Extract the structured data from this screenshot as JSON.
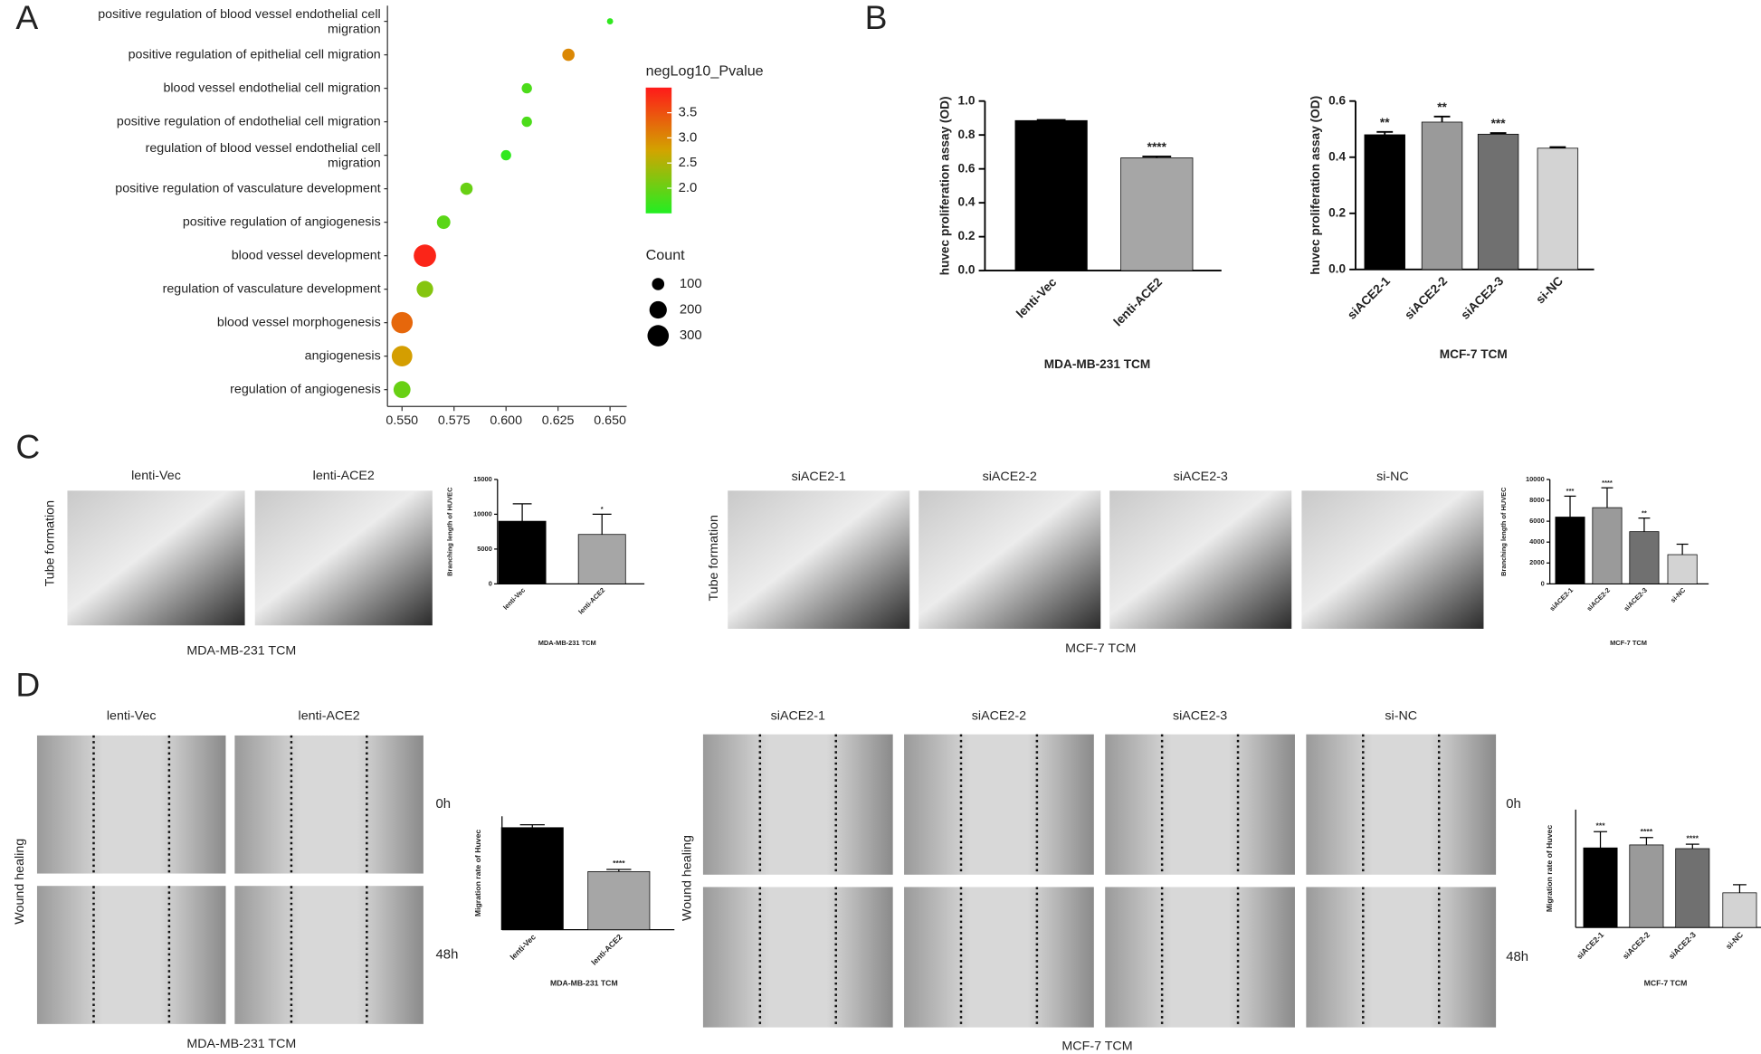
{
  "figure": {
    "panel_labels": [
      "A",
      "B",
      "C",
      "D"
    ],
    "tube_left": {
      "image_labels": [
        "lenti-Vec",
        "lenti-ACE2"
      ],
      "side_label": "Tube formation",
      "caption": "MDA-MB-231 TCM"
    },
    "tube_right": {
      "image_labels": [
        "siACE2-1",
        "siACE2-2",
        "siACE2-3",
        "si-NC"
      ],
      "side_label": "Tube formation",
      "caption": "MCF-7 TCM"
    },
    "wound_left": {
      "image_labels": [
        "lenti-Vec",
        "lenti-ACE2"
      ],
      "row_labels": [
        "0h",
        "48h"
      ],
      "side_label": "Wound healing",
      "caption": "MDA-MB-231 TCM"
    },
    "wound_right": {
      "image_labels": [
        "siACE2-1",
        "siACE2-2",
        "siACE2-3",
        "si-NC"
      ],
      "row_labels": [
        "0h",
        "48h"
      ],
      "side_label": "Wound healing",
      "caption": "MCF-7 TCM"
    }
  },
  "chart_data": [
    {
      "type": "dot",
      "categories": [
        "positive regulation of blood vessel endothelial cell migration",
        "positive regulation of epithelial cell migration",
        "blood vessel endothelial cell migration",
        "positive regulation of endothelial cell migration",
        "regulation of blood vessel endothelial cell migration",
        "positive regulation of vasculature development",
        "positive regulation of angiogenesis",
        "blood vessel development",
        "regulation of vasculature development",
        "blood vessel morphogenesis",
        "angiogenesis",
        "regulation of angiogenesis"
      ],
      "values": [
        0.65,
        0.63,
        0.61,
        0.61,
        0.6,
        0.581,
        0.57,
        0.561,
        0.561,
        0.55,
        0.55,
        0.55
      ],
      "counts": [
        25,
        100,
        70,
        70,
        70,
        100,
        120,
        330,
        180,
        300,
        280,
        190
      ],
      "pvalues": [
        1.6,
        3.0,
        1.8,
        1.8,
        1.6,
        2.0,
        1.9,
        3.9,
        2.2,
        3.3,
        2.8,
        2.0
      ],
      "xlim": [
        0.543,
        0.658
      ],
      "xticks": [
        {
          "value": 0.55,
          "label": "0.550"
        },
        0.575,
        {
          "value": 0.6,
          "label": "0.600"
        },
        0.625,
        {
          "value": 0.65,
          "label": "0.650"
        }
      ],
      "color_title": "negLog10_Pvalue",
      "colorlim": [
        1.5,
        4.0
      ],
      "colorticks": [
        {
          "value": 2,
          "label": "2.0"
        },
        2.5,
        {
          "value": 3,
          "label": "3.0"
        },
        3.5
      ],
      "colors": [
        "#22ee22",
        "#d2a400",
        "#ff1a1a"
      ],
      "size_title": "Count",
      "size_ticks": [
        100,
        200,
        300
      ]
    },
    {
      "type": "bar",
      "ylabel": "huvec proliferation assay (OD)",
      "xlabel": "MDA-MB-231 TCM",
      "categories": [
        "lenti-Vec",
        "lenti-ACE2"
      ],
      "values": [
        0.885,
        0.665
      ],
      "errors": [
        0.004,
        0.008
      ],
      "annotations": [
        null,
        "****"
      ],
      "colors": [
        "#000000",
        "#a6a6a6"
      ],
      "ylim": [
        0,
        1.0
      ],
      "yticks": [
        {
          "value": 0,
          "label": "0.0"
        },
        0.2,
        0.4,
        0.6,
        0.8,
        {
          "value": 1,
          "label": "1.0"
        }
      ]
    },
    {
      "type": "bar",
      "ylabel": "huvec proliferation assay (OD)",
      "xlabel": "MCF-7 TCM",
      "categories": [
        "siACE2-1",
        "siACE2-2",
        "siACE2-3",
        "si-NC"
      ],
      "values": [
        0.48,
        0.525,
        0.482,
        0.432
      ],
      "errors": [
        0.01,
        0.02,
        0.004,
        0.004
      ],
      "annotations": [
        "**",
        "**",
        "***",
        null
      ],
      "colors": [
        "#000000",
        "#9a9a9a",
        "#707070",
        "#d3d3d3"
      ],
      "ylim": [
        0,
        0.6
      ],
      "yticks": [
        {
          "value": 0,
          "label": "0.0"
        },
        0.2,
        0.4,
        0.6
      ]
    },
    {
      "type": "bar",
      "ylabel": "Branching length of HUVEC",
      "xlabel": "MDA-MB-231 TCM",
      "categories": [
        "lenti-Vec",
        "lenti-ACE2"
      ],
      "values": [
        9000,
        7100
      ],
      "errors": [
        2500,
        2900
      ],
      "annotations": [
        null,
        "*"
      ],
      "colors": [
        "#000000",
        "#a6a6a6"
      ],
      "ylim": [
        0,
        15000
      ],
      "yticks": [
        0,
        5000,
        10000,
        15000
      ]
    },
    {
      "type": "bar",
      "ylabel": "Branching length of HUVEC",
      "xlabel": "MCF-7 TCM",
      "categories": [
        "siACE2-1",
        "siACE2-2",
        "siACE2-3",
        "si-NC"
      ],
      "values": [
        6400,
        7300,
        5000,
        2800
      ],
      "errors": [
        2000,
        1900,
        1300,
        1000
      ],
      "annotations": [
        "***",
        "****",
        "**",
        null
      ],
      "colors": [
        "#000000",
        "#9a9a9a",
        "#707070",
        "#d3d3d3"
      ],
      "ylim": [
        0,
        10000
      ],
      "yticks": [
        0,
        2000,
        4000,
        6000,
        8000,
        10000
      ]
    },
    {
      "type": "bar",
      "ylabel": "Migration rate of Huvec",
      "xlabel": "MDA-MB-231 TCM",
      "categories": [
        "lenti-Vec",
        "lenti-ACE2"
      ],
      "values": [
        0.72,
        0.41
      ],
      "errors": [
        0.02,
        0.015
      ],
      "annotations": [
        null,
        "****"
      ],
      "colors": [
        "#000000",
        "#a6a6a6"
      ],
      "ylim": [
        0,
        0.8
      ]
    },
    {
      "type": "bar",
      "ylabel": "Migration rate of Huvec",
      "xlabel": "MCF-7 TCM",
      "categories": [
        "siACE2-1",
        "siACE2-2",
        "siACE2-3",
        "si-NC"
      ],
      "values": [
        0.54,
        0.56,
        0.535,
        0.235
      ],
      "errors": [
        0.11,
        0.05,
        0.03,
        0.055
      ],
      "annotations": [
        "***",
        "****",
        "****",
        null
      ],
      "colors": [
        "#000000",
        "#9a9a9a",
        "#707070",
        "#d3d3d3"
      ],
      "ylim": [
        0,
        0.8
      ]
    }
  ]
}
